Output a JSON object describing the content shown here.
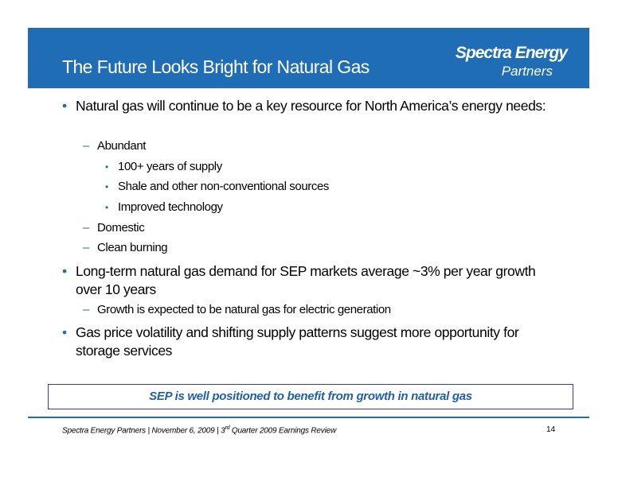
{
  "header": {
    "title": "The Future Looks Bright for Natural Gas",
    "logo": {
      "name": "Spectra Energy",
      "subtitle": "Partners"
    }
  },
  "bullets": [
    {
      "level": 1,
      "text": "Natural gas will continue to be a key resource for North America’s energy needs:"
    },
    {
      "level": 2,
      "text": "Abundant"
    },
    {
      "level": 3,
      "text": "100+ years of supply"
    },
    {
      "level": 3,
      "text": "Shale and other non-conventional sources"
    },
    {
      "level": 3,
      "text": "Improved technology"
    },
    {
      "level": 2,
      "text": "Domestic"
    },
    {
      "level": 2,
      "text": "Clean burning"
    },
    {
      "level": 1,
      "text": "Long-term natural gas demand for SEP markets average ~3% per year growth over 10 years"
    },
    {
      "level": 2,
      "text": "Growth is expected to be natural gas for electric generation"
    },
    {
      "level": 1,
      "text": "Gas price volatility and shifting supply patterns suggest more opportunity for storage services"
    }
  ],
  "callout": "SEP is well positioned to benefit from growth in natural gas",
  "footer": {
    "text_before": "Spectra Energy Partners | November 6, 2009 | 3",
    "superscript": "rd",
    "text_after": " Quarter 2009 Earnings Review",
    "page": "14"
  }
}
